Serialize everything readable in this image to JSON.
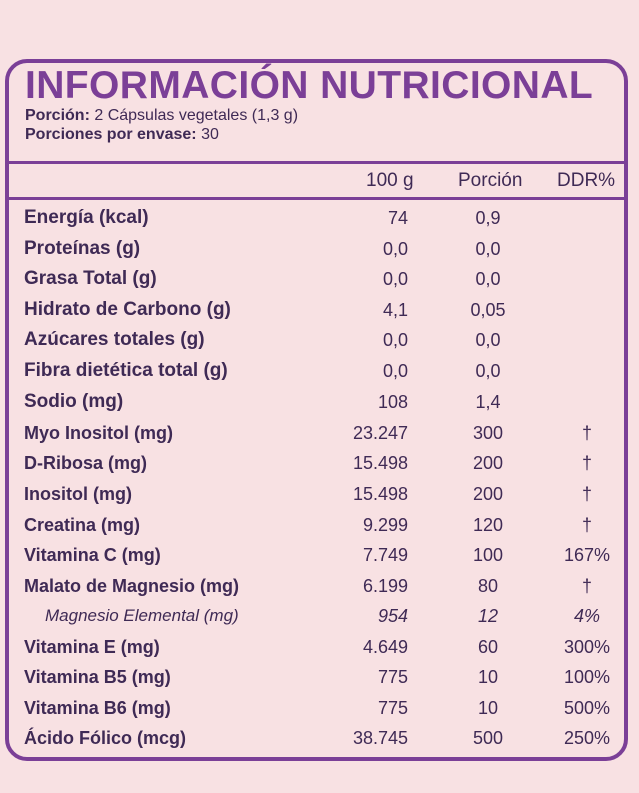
{
  "title": "INFORMACIÓN NUTRICIONAL",
  "serving": {
    "label": "Porción:",
    "value": "2 Cápsulas vegetales (1,3 g)"
  },
  "servings_per": {
    "label": "Porciones por envase:",
    "value": "30"
  },
  "columns": {
    "c100": "100 g",
    "portion": "Porción",
    "ddr": "DDR%"
  },
  "rows": [
    {
      "label": "Energía (kcal)",
      "v100": "74",
      "portion": "0,9",
      "ddr": ""
    },
    {
      "label": "Proteínas (g)",
      "v100": "0,0",
      "portion": "0,0",
      "ddr": ""
    },
    {
      "label": "Grasa Total (g)",
      "v100": "0,0",
      "portion": "0,0",
      "ddr": ""
    },
    {
      "label": "Hidrato de Carbono (g)",
      "v100": "4,1",
      "portion": "0,05",
      "ddr": ""
    },
    {
      "label": "Azúcares totales (g)",
      "v100": "0,0",
      "portion": "0,0",
      "ddr": ""
    },
    {
      "label": "Fibra dietética total (g)",
      "v100": "0,0",
      "portion": "0,0",
      "ddr": ""
    },
    {
      "label": "Sodio (mg)",
      "v100": "108",
      "portion": "1,4",
      "ddr": ""
    },
    {
      "label": "Myo Inositol (mg)",
      "v100": "23.247",
      "portion": "300",
      "ddr": "†"
    },
    {
      "label": "D-Ribosa (mg)",
      "v100": "15.498",
      "portion": "200",
      "ddr": "†"
    },
    {
      "label": "Inositol (mg)",
      "v100": "15.498",
      "portion": "200",
      "ddr": "†"
    },
    {
      "label": "Creatina (mg)",
      "v100": "9.299",
      "portion": "120",
      "ddr": "†"
    },
    {
      "label": "Vitamina C (mg)",
      "v100": "7.749",
      "portion": "100",
      "ddr": "167%"
    },
    {
      "label": "Malato de Magnesio (mg)",
      "v100": "6.199",
      "portion": "80",
      "ddr": "†"
    },
    {
      "label": "Magnesio Elemental (mg)",
      "v100": "954",
      "portion": "12",
      "ddr": "4%"
    },
    {
      "label": "Vitamina E (mg)",
      "v100": "4.649",
      "portion": "60",
      "ddr": "300%"
    },
    {
      "label": "Vitamina B5 (mg)",
      "v100": "775",
      "portion": "10",
      "ddr": "100%"
    },
    {
      "label": "Vitamina B6 (mg)",
      "v100": "775",
      "portion": "10",
      "ddr": "500%"
    },
    {
      "label": "Ácido Fólico (mcg)",
      "v100": "38.745",
      "portion": "500",
      "ddr": "250%"
    }
  ]
}
